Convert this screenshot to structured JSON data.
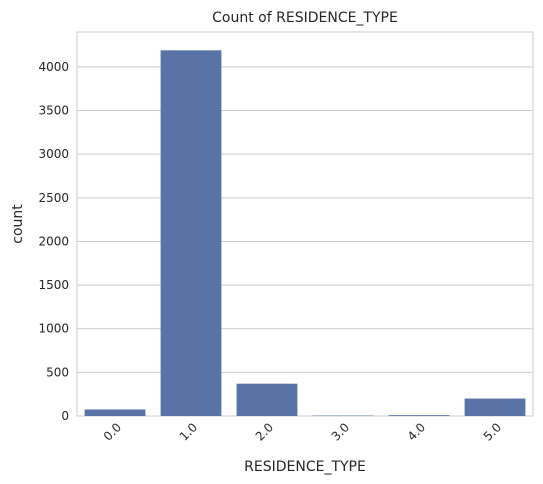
{
  "chart_data": {
    "type": "bar",
    "title": "Count of RESIDENCE_TYPE",
    "xlabel": "RESIDENCE_TYPE",
    "ylabel": "count",
    "categories": [
      "0.0",
      "1.0",
      "2.0",
      "3.0",
      "4.0",
      "5.0"
    ],
    "values": [
      75,
      4190,
      370,
      5,
      10,
      200
    ],
    "ylim": [
      0,
      4400
    ],
    "yticks": [
      0,
      500,
      1000,
      1500,
      2000,
      2500,
      3000,
      3500,
      4000
    ],
    "bar_color": "#5874a6",
    "grid": true,
    "x_tick_rotation": "45"
  }
}
